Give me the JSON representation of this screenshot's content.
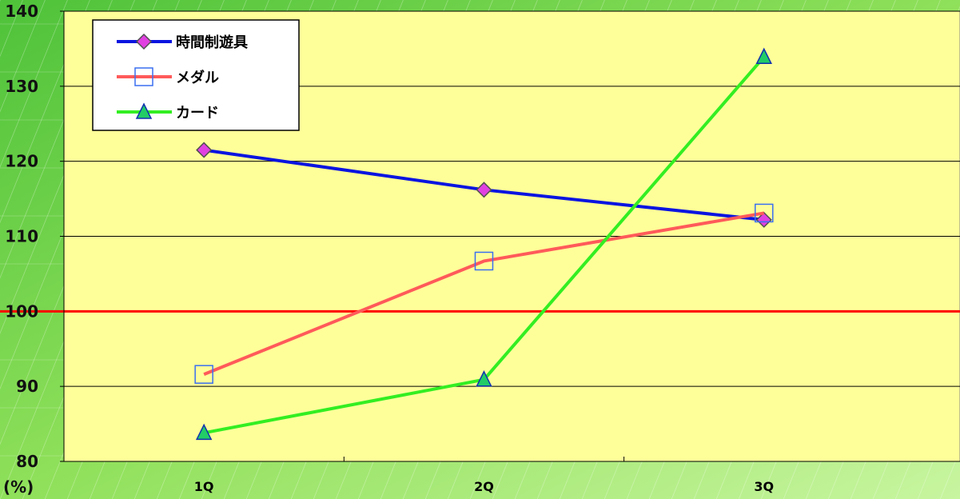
{
  "chart_data": {
    "type": "line",
    "categories": [
      "1Q",
      "2Q",
      "3Q"
    ],
    "unit_label": "(%)",
    "ylim": [
      80,
      140
    ],
    "yticks": [
      80,
      90,
      100,
      110,
      120,
      130,
      140
    ],
    "reference_line": {
      "value": 100,
      "color": "#ff0000"
    },
    "plot_background": "#ffff99",
    "page_background": "#86dc3c",
    "grid": true,
    "legend_position": "top-left",
    "series": [
      {
        "name": "時間制遊具",
        "values": [
          121.5,
          116.2,
          112.2
        ],
        "color": "#0a14e0",
        "marker": "diamond",
        "marker_fill": "#e040e0"
      },
      {
        "name": "メダル",
        "values": [
          91.6,
          106.7,
          113.1
        ],
        "color": "#ff5a5a",
        "marker": "square",
        "marker_fill": "none",
        "marker_stroke": "#3a6ff0"
      },
      {
        "name": "カード",
        "values": [
          83.8,
          90.9,
          133.9
        ],
        "color": "#33ee22",
        "marker": "triangle",
        "marker_fill": "#22cc66",
        "marker_stroke": "#1030b0"
      }
    ]
  }
}
